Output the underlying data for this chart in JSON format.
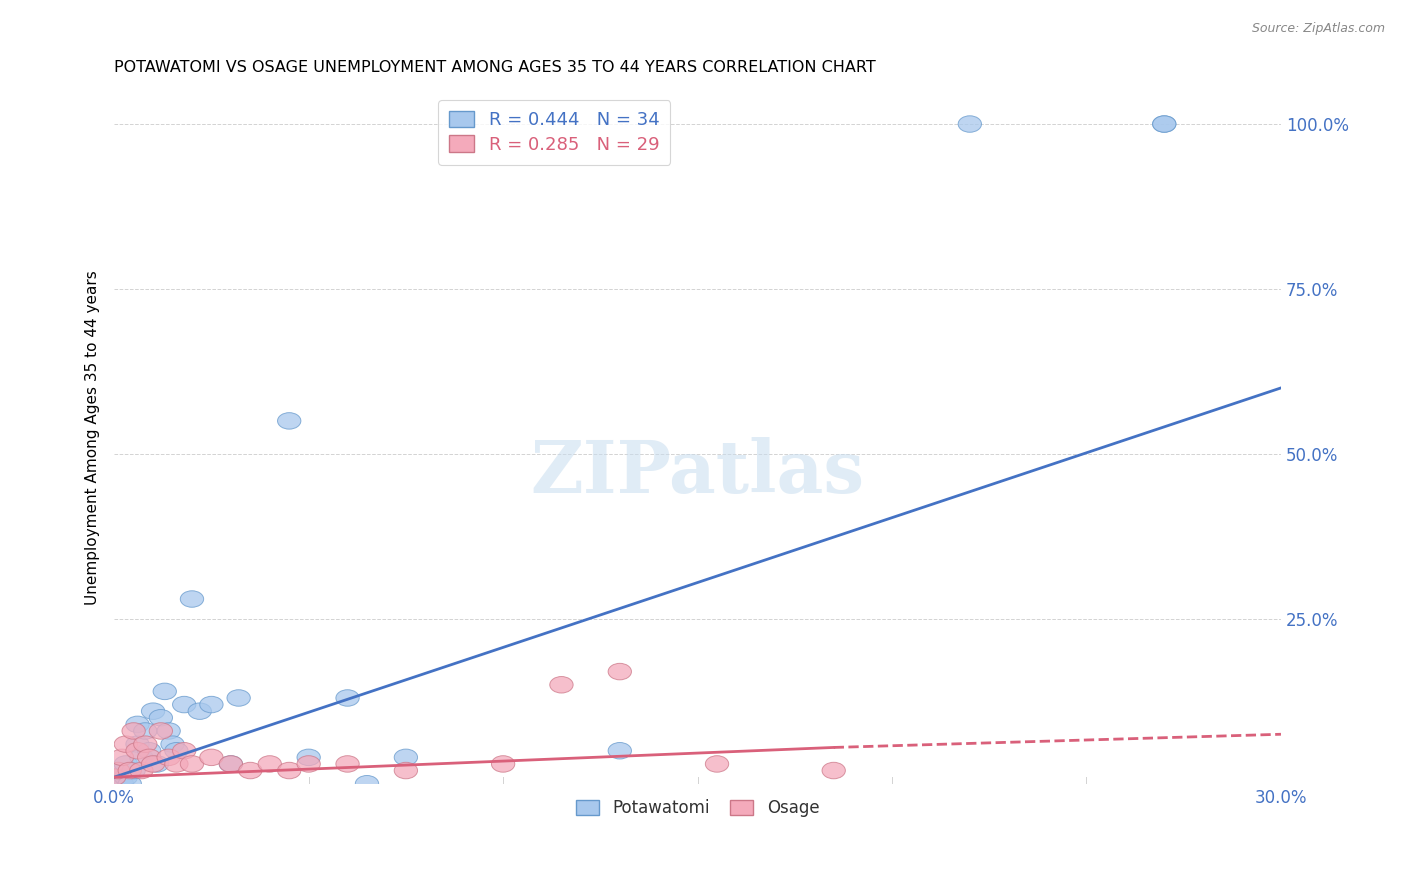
{
  "title": "POTAWATOMI VS OSAGE UNEMPLOYMENT AMONG AGES 35 TO 44 YEARS CORRELATION CHART",
  "source": "Source: ZipAtlas.com",
  "ylabel": "Unemployment Among Ages 35 to 44 years",
  "xlim": [
    0.0,
    0.3
  ],
  "ylim": [
    0.0,
    1.05
  ],
  "yticks": [
    0.0,
    0.25,
    0.5,
    0.75,
    1.0
  ],
  "ytick_labels": [
    "",
    "25.0%",
    "50.0%",
    "75.0%",
    "100.0%"
  ],
  "xtick_positions": [
    0.0,
    0.3
  ],
  "xtick_labels": [
    "0.0%",
    "30.0%"
  ],
  "legend_blue_text": "R = 0.444   N = 34",
  "legend_pink_text": "R = 0.285   N = 29",
  "blue_color": "#A8C8ED",
  "pink_color": "#F4AABB",
  "blue_line_color": "#4472C4",
  "pink_line_color": "#D9607A",
  "watermark": "ZIPatlas",
  "blue_line": {
    "x0": 0.0,
    "y0": 0.01,
    "x1": 0.3,
    "y1": 0.6
  },
  "pink_line_solid": {
    "x0": 0.0,
    "y0": 0.01,
    "x1": 0.185,
    "y1": 0.055
  },
  "pink_line_dash": {
    "x0": 0.185,
    "y0": 0.055,
    "x1": 0.3,
    "y1": 0.075
  },
  "potawatomi_x": [
    0.0,
    0.001,
    0.002,
    0.003,
    0.003,
    0.004,
    0.005,
    0.006,
    0.006,
    0.007,
    0.008,
    0.009,
    0.01,
    0.011,
    0.012,
    0.013,
    0.014,
    0.015,
    0.016,
    0.018,
    0.02,
    0.022,
    0.025,
    0.03,
    0.032,
    0.045,
    0.05,
    0.06,
    0.065,
    0.075,
    0.13,
    0.22,
    0.27,
    0.27
  ],
  "potawatomi_y": [
    0.01,
    0.02,
    0.0,
    0.01,
    0.03,
    0.0,
    0.02,
    0.06,
    0.09,
    0.04,
    0.08,
    0.05,
    0.11,
    0.03,
    0.1,
    0.14,
    0.08,
    0.06,
    0.05,
    0.12,
    0.28,
    0.11,
    0.12,
    0.03,
    0.13,
    0.55,
    0.04,
    0.13,
    0.0,
    0.04,
    0.05,
    1.0,
    1.0,
    1.0
  ],
  "osage_x": [
    0.0,
    0.001,
    0.002,
    0.003,
    0.004,
    0.005,
    0.006,
    0.007,
    0.008,
    0.009,
    0.01,
    0.012,
    0.014,
    0.016,
    0.018,
    0.02,
    0.025,
    0.03,
    0.035,
    0.04,
    0.045,
    0.05,
    0.06,
    0.075,
    0.1,
    0.115,
    0.13,
    0.155,
    0.185
  ],
  "osage_y": [
    0.01,
    0.02,
    0.04,
    0.06,
    0.02,
    0.08,
    0.05,
    0.02,
    0.06,
    0.04,
    0.03,
    0.08,
    0.04,
    0.03,
    0.05,
    0.03,
    0.04,
    0.03,
    0.02,
    0.03,
    0.02,
    0.03,
    0.03,
    0.02,
    0.03,
    0.15,
    0.17,
    0.03,
    0.02
  ]
}
